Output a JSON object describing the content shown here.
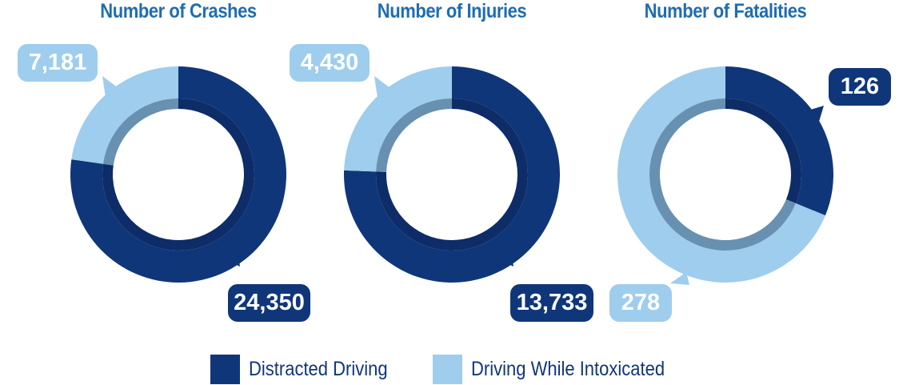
{
  "chart_data": [
    {
      "type": "pie",
      "title": "Number of Crashes",
      "categories": [
        "Distracted Driving",
        "Driving While Intoxicated"
      ],
      "values": [
        24350,
        7181
      ],
      "labels": [
        "24,350",
        "7,181"
      ]
    },
    {
      "type": "pie",
      "title": "Number of Injuries",
      "categories": [
        "Distracted Driving",
        "Driving While Intoxicated"
      ],
      "values": [
        13733,
        4430
      ],
      "labels": [
        "13,733",
        "4,430"
      ]
    },
    {
      "type": "pie",
      "title": "Number of Fatalities",
      "categories": [
        "Distracted Driving",
        "Driving While Intoxicated"
      ],
      "values": [
        126,
        278
      ],
      "labels": [
        "126",
        "278"
      ]
    }
  ],
  "legend": [
    {
      "label": "Distracted Driving",
      "color": "#10367a"
    },
    {
      "label": "Driving While Intoxicated",
      "color": "#9ecdee"
    }
  ],
  "colors": {
    "dark": "#10367a",
    "light": "#9ecdee",
    "dark_band": "#0d2c68",
    "light_band": "#6890b0",
    "title": "#1f6db0"
  }
}
